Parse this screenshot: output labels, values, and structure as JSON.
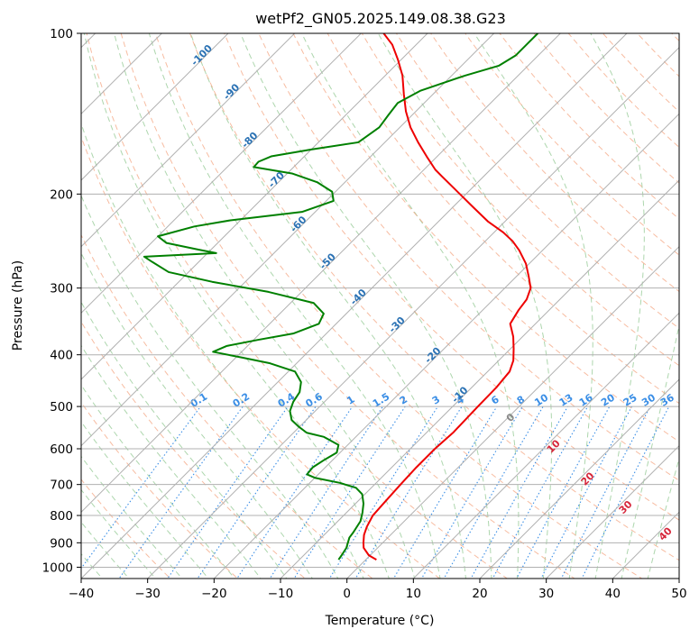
{
  "colors": {
    "temperature": "#ee0000",
    "dewpoint": "#008000",
    "isobar": "#b0b0b0",
    "isotherm": "#b0b0b0",
    "dry_adiabat": "#f4a582",
    "moist_adiabat": "#9fcf9f",
    "mixing_ratio": "#3a8ee6",
    "mixing_ratio_label": "#3a8ee6",
    "moist_label": "#2b72b4",
    "dry_label": "#d6263a",
    "zero_label": "#888888",
    "background": "#ffffff"
  },
  "chart_data": {
    "type": "skew-t log-p",
    "title": "wetPf2_GN05.2025.149.08.38.G23",
    "xlabel": "Temperature (°C)",
    "ylabel": "Pressure (hPa)",
    "xlim": [
      -40,
      50
    ],
    "ylim": [
      1050,
      100
    ],
    "y_scale": "log",
    "grid": true,
    "x_ticks": [
      -40,
      -30,
      -20,
      -10,
      0,
      10,
      20,
      30,
      40,
      50
    ],
    "x_tick_labels": [
      "−40",
      "−30",
      "−20",
      "−10",
      "0",
      "10",
      "20",
      "30",
      "40",
      "50"
    ],
    "y_ticks": [
      1000,
      900,
      800,
      700,
      600,
      500,
      400,
      300,
      200,
      100
    ],
    "y_tick_labels": [
      "1000",
      "900",
      "800",
      "700",
      "600",
      "500",
      "400",
      "300",
      "200",
      "100"
    ],
    "series": [
      {
        "key": "temperature",
        "points": [
          [
            968,
            1.6
          ],
          [
            950,
            -0.2
          ],
          [
            920,
            -2.1
          ],
          [
            900,
            -2.9
          ],
          [
            870,
            -4.0
          ],
          [
            840,
            -4.8
          ],
          [
            800,
            -5.6
          ],
          [
            760,
            -5.8
          ],
          [
            700,
            -6.1
          ],
          [
            650,
            -6.3
          ],
          [
            600,
            -6.3
          ],
          [
            560,
            -6.0
          ],
          [
            500,
            -6.2
          ],
          [
            460,
            -6.3
          ],
          [
            430,
            -6.7
          ],
          [
            410,
            -7.8
          ],
          [
            390,
            -9.5
          ],
          [
            370,
            -11.4
          ],
          [
            350,
            -13.8
          ],
          [
            330,
            -14.6
          ],
          [
            315,
            -15.0
          ],
          [
            300,
            -16.1
          ],
          [
            285,
            -18.2
          ],
          [
            270,
            -20.5
          ],
          [
            255,
            -23.5
          ],
          [
            245,
            -25.9
          ],
          [
            236,
            -28.6
          ],
          [
            225,
            -32.6
          ],
          [
            210,
            -37.5
          ],
          [
            195,
            -42.7
          ],
          [
            185,
            -46.4
          ],
          [
            180,
            -48.3
          ],
          [
            170,
            -51.6
          ],
          [
            160,
            -55.0
          ],
          [
            150,
            -58.4
          ],
          [
            140,
            -61.5
          ],
          [
            130,
            -64.4
          ],
          [
            120,
            -67.4
          ],
          [
            112,
            -70.5
          ],
          [
            105,
            -73.6
          ],
          [
            100,
            -76.6
          ]
        ]
      },
      {
        "key": "dewpoint",
        "points": [
          [
            968,
            -4.1
          ],
          [
            950,
            -4.3
          ],
          [
            920,
            -4.7
          ],
          [
            880,
            -5.8
          ],
          [
            860,
            -6.0
          ],
          [
            820,
            -6.6
          ],
          [
            790,
            -7.6
          ],
          [
            760,
            -8.8
          ],
          [
            730,
            -10.4
          ],
          [
            710,
            -12.3
          ],
          [
            695,
            -15.5
          ],
          [
            680,
            -20.0
          ],
          [
            670,
            -21.7
          ],
          [
            650,
            -21.9
          ],
          [
            630,
            -21.3
          ],
          [
            610,
            -20.5
          ],
          [
            590,
            -21.4
          ],
          [
            570,
            -24.8
          ],
          [
            560,
            -28.0
          ],
          [
            545,
            -30.2
          ],
          [
            530,
            -32.2
          ],
          [
            510,
            -33.8
          ],
          [
            490,
            -34.7
          ],
          [
            470,
            -35.2
          ],
          [
            450,
            -36.5
          ],
          [
            430,
            -39.0
          ],
          [
            415,
            -44.0
          ],
          [
            405,
            -49.0
          ],
          [
            395,
            -54.3
          ],
          [
            385,
            -53.1
          ],
          [
            375,
            -49.3
          ],
          [
            365,
            -45.0
          ],
          [
            350,
            -42.6
          ],
          [
            335,
            -43.4
          ],
          [
            320,
            -46.5
          ],
          [
            305,
            -55.0
          ],
          [
            292,
            -65.0
          ],
          [
            280,
            -73.0
          ],
          [
            268,
            -77.0
          ],
          [
            262,
            -79.0
          ],
          [
            258,
            -68.7
          ],
          [
            254,
            -72.0
          ],
          [
            247,
            -77.7
          ],
          [
            240,
            -80.0
          ],
          [
            230,
            -76.0
          ],
          [
            224,
            -71.5
          ],
          [
            216,
            -62.0
          ],
          [
            206,
            -58.9
          ],
          [
            198,
            -60.5
          ],
          [
            190,
            -64.2
          ],
          [
            183,
            -69.3
          ],
          [
            178,
            -76.0
          ],
          [
            174,
            -76.1
          ],
          [
            170,
            -75.0
          ],
          [
            165,
            -70.0
          ],
          [
            160,
            -64.0
          ],
          [
            150,
            -63.1
          ],
          [
            142,
            -63.6
          ],
          [
            135,
            -64.0
          ],
          [
            128,
            -62.4
          ],
          [
            120,
            -58.0
          ],
          [
            115,
            -54.4
          ],
          [
            110,
            -53.4
          ],
          [
            105,
            -53.4
          ],
          [
            100,
            -53.4
          ]
        ]
      }
    ],
    "dry_adiabat_labels": [
      {
        "text": "10",
        "p": 600
      },
      {
        "text": "20",
        "p": 690
      },
      {
        "text": "30",
        "p": 780
      },
      {
        "text": "40",
        "p": 875
      }
    ],
    "zero_label": {
      "text": "0",
      "p": 530
    },
    "moist_adiabat_labels": [
      {
        "text": "-10",
        "p": 480
      },
      {
        "text": "-20",
        "p": 405
      },
      {
        "text": "-30",
        "p": 355
      },
      {
        "text": "-40",
        "p": 315
      },
      {
        "text": "-50",
        "p": 270
      },
      {
        "text": "-60",
        "p": 230
      },
      {
        "text": "-70",
        "p": 190
      },
      {
        "text": "-80",
        "p": 160
      },
      {
        "text": "-90",
        "p": 130
      },
      {
        "text": "-100",
        "p": 111
      }
    ],
    "mixing_ratio_labels": [
      "0.1",
      "0.2",
      "0.4",
      "0.6",
      "1",
      "1.5",
      "2",
      "3",
      "4",
      "6",
      "8",
      "10",
      "13",
      "16",
      "20",
      "25",
      "30",
      "36"
    ]
  }
}
